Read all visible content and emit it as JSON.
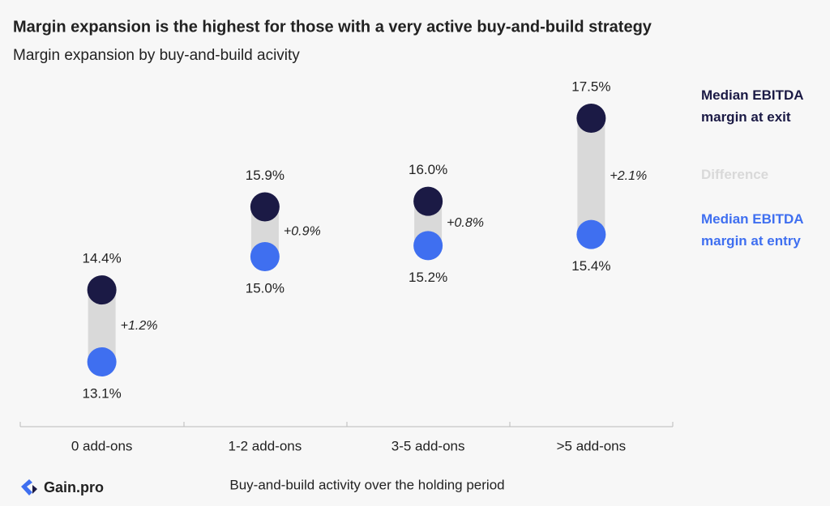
{
  "chart_data": {
    "type": "dumbbell",
    "title": "Margin expansion is the highest for those with a very active buy-and-build strategy",
    "subtitle": "Margin expansion by buy-and-build acivity",
    "x_label": "Buy-and-build activity over the holding period",
    "brand": "Gain.pro",
    "categories": [
      "0 add-ons",
      "1-2 add-ons",
      "3-5 add-ons",
      ">5 add-ons"
    ],
    "series": [
      {
        "name": "Median EBITDA margin at exit",
        "color": "#1b1a45",
        "values": [
          14.4,
          15.9,
          16.0,
          17.5
        ],
        "value_labels": [
          "14.4%",
          "15.9%",
          "16.0%",
          "17.5%"
        ]
      },
      {
        "name": "Difference",
        "color": "#d9d9d9",
        "values": [
          1.2,
          0.9,
          0.8,
          2.1
        ],
        "value_labels": [
          "+1.2%",
          "+0.9%",
          "+0.8%",
          "+2.1%"
        ]
      },
      {
        "name": "Median EBITDA margin at entry",
        "color": "#3f6ff0",
        "values": [
          13.1,
          15.0,
          15.2,
          15.4
        ],
        "value_labels": [
          "13.1%",
          "15.0%",
          "15.2%",
          "15.4%"
        ]
      }
    ]
  }
}
